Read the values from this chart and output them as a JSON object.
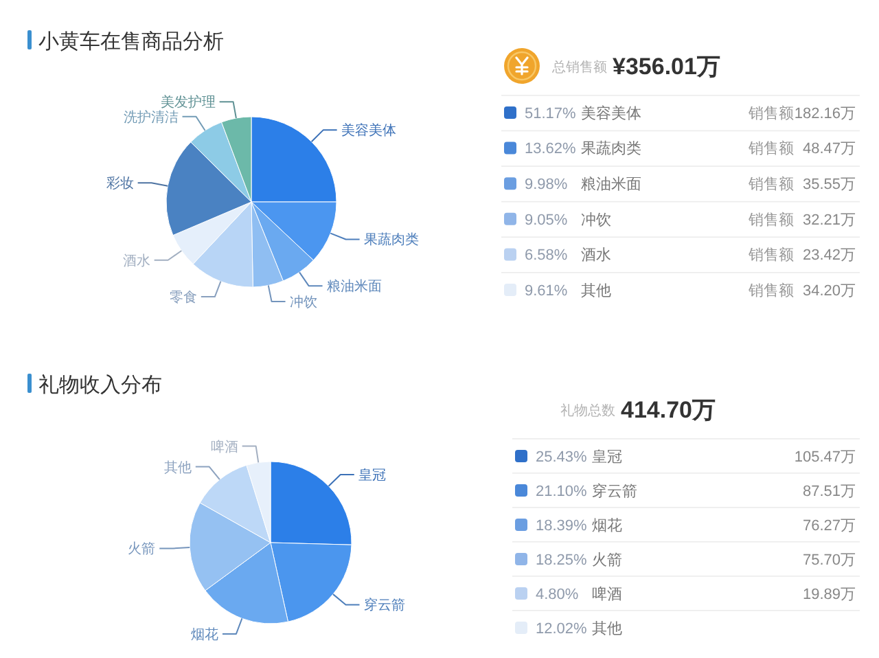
{
  "chart_data": [
    {
      "type": "pie",
      "title": "小黄车在售商品分析",
      "categories": [
        "美容美体",
        "果蔬肉类",
        "粮油米面",
        "冲饮",
        "零食",
        "酒水",
        "彩妆",
        "洗护清洁",
        "美发护理"
      ],
      "values": [
        25,
        12,
        6.9,
        5.8,
        12.3,
        6.6,
        18.8,
        6.9,
        5.7
      ],
      "colors": [
        "#2c7fe8",
        "#4b96f0",
        "#6aa9f0",
        "#8fbef2",
        "#b8d5f6",
        "#e5effb",
        "#4a82c2",
        "#8dcbe6",
        "#6cb9a9"
      ]
    },
    {
      "type": "other",
      "title": "总销售额",
      "subtitle": "¥356.01万",
      "categories": [
        "美容美体",
        "果蔬肉类",
        "粮油米面",
        "冲饮",
        "酒水",
        "其他"
      ],
      "colors": [
        "#2f70c9",
        "#4a88d9",
        "#6b9ee1",
        "#90b5e8",
        "#bad1f1",
        "#e4edf8"
      ],
      "series": [
        {
          "values": [
            51.17,
            13.62,
            9.98,
            9.05,
            6.58,
            9.61
          ],
          "value_labels": [
            "51.17%",
            "13.62%",
            "9.98%",
            "9.05%",
            "6.58%",
            "9.61%"
          ]
        },
        {
          "name": "销售额",
          "values": [
            182.16,
            48.47,
            35.55,
            32.21,
            23.42,
            34.2
          ],
          "value_labels": [
            "182.16万",
            "48.47万",
            "35.55万",
            "32.21万",
            "23.42万",
            "34.20万"
          ]
        }
      ]
    },
    {
      "type": "pie",
      "title": "礼物收入分布",
      "categories": [
        "皇冠",
        "穿云箭",
        "烟花",
        "火箭",
        "其他",
        "啤酒"
      ],
      "values": [
        25.43,
        21.1,
        18.39,
        18.25,
        12.02,
        4.8
      ],
      "colors": [
        "#2c7fe8",
        "#4b96ee",
        "#6aa9f0",
        "#95c1f2",
        "#bdd8f7",
        "#e7f0fb"
      ]
    },
    {
      "type": "other",
      "title": "礼物总数",
      "subtitle": "414.70万",
      "categories": [
        "皇冠",
        "穿云箭",
        "烟花",
        "火箭",
        "啤酒",
        "其他"
      ],
      "colors": [
        "#2f70c9",
        "#4a88d9",
        "#6b9ee1",
        "#90b5e8",
        "#bad1f1",
        "#e4edf8"
      ],
      "series": [
        {
          "values": [
            25.43,
            21.1,
            18.39,
            18.25,
            4.8,
            12.02
          ],
          "value_labels": [
            "25.43%",
            "21.10%",
            "18.39%",
            "18.25%",
            "4.80%",
            "12.02%"
          ]
        },
        {
          "values": [
            105.47,
            87.51,
            76.27,
            75.7,
            19.89,
            null
          ],
          "value_labels": [
            "105.47万",
            "87.51万",
            "76.27万",
            "75.70万",
            "19.89万",
            null
          ]
        }
      ]
    }
  ]
}
